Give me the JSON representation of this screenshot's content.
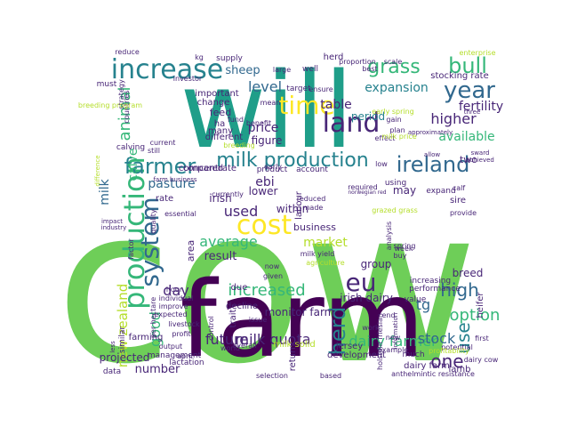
{
  "palette": {
    "background": "#ffffff",
    "dark_purple": "#440154",
    "purple": "#482677",
    "blue": "#31688e",
    "teal": "#26828e",
    "green_teal": "#1f9e89",
    "green": "#35b779",
    "light_green": "#6ece58",
    "yellow_green": "#b5de2b",
    "yellow": "#fde725"
  },
  "words": [
    {
      "text": "cow",
      "color": "light_green"
    },
    {
      "text": "will",
      "color": "green_teal"
    },
    {
      "text": "farm",
      "color": "dark_purple"
    },
    {
      "text": "increase",
      "color": "teal"
    },
    {
      "text": "production",
      "color": "green"
    },
    {
      "text": "system",
      "color": "blue"
    },
    {
      "text": "farmer",
      "color": "teal"
    },
    {
      "text": "ireland",
      "color": "blue"
    },
    {
      "text": "time",
      "color": "yellow"
    },
    {
      "text": "cost",
      "color": "yellow"
    },
    {
      "text": "land",
      "color": "purple"
    },
    {
      "text": "year",
      "color": "blue"
    },
    {
      "text": "bull",
      "color": "green"
    },
    {
      "text": "milk production",
      "color": "teal"
    },
    {
      "text": "eu",
      "color": "purple"
    },
    {
      "text": "herd",
      "color": "teal"
    },
    {
      "text": "high",
      "color": "blue"
    },
    {
      "text": "increased",
      "color": "green"
    },
    {
      "text": "future",
      "color": "purple"
    },
    {
      "text": "milk quota",
      "color": "purple"
    },
    {
      "text": "dairy farmer",
      "color": "green"
    },
    {
      "text": "one",
      "color": "purple"
    },
    {
      "text": "use",
      "color": "teal"
    },
    {
      "text": "option",
      "color": "green"
    },
    {
      "text": "stock",
      "color": "blue"
    },
    {
      "text": "tg",
      "color": "blue"
    },
    {
      "text": "grass",
      "color": "green"
    },
    {
      "text": "animal",
      "color": "green"
    },
    {
      "text": "average",
      "color": "green"
    },
    {
      "text": "used",
      "color": "purple"
    },
    {
      "text": "day",
      "color": "purple"
    },
    {
      "text": "good",
      "color": "green"
    },
    {
      "text": "new zealand",
      "color": "yellow_green"
    },
    {
      "text": "pasture",
      "color": "blue"
    },
    {
      "text": "level",
      "color": "blue"
    },
    {
      "text": "price",
      "color": "purple"
    },
    {
      "text": "sheep",
      "color": "blue"
    },
    {
      "text": "expansion",
      "color": "teal"
    },
    {
      "text": "higher",
      "color": "purple"
    },
    {
      "text": "fertility",
      "color": "purple"
    },
    {
      "text": "available",
      "color": "green"
    },
    {
      "text": "table",
      "color": "purple"
    },
    {
      "text": "period",
      "color": "teal"
    },
    {
      "text": "ebi",
      "color": "purple"
    },
    {
      "text": "lower",
      "color": "purple"
    },
    {
      "text": "market",
      "color": "yellow_green"
    },
    {
      "text": "result",
      "color": "purple"
    },
    {
      "text": "monitor farm",
      "color": "purple"
    },
    {
      "text": "number",
      "color": "purple"
    },
    {
      "text": "group",
      "color": "purple"
    },
    {
      "text": "breed",
      "color": "purple"
    },
    {
      "text": "irish dairy",
      "color": "purple"
    },
    {
      "text": "irish",
      "color": "purple"
    },
    {
      "text": "within",
      "color": "purple"
    },
    {
      "text": "business",
      "color": "purple"
    },
    {
      "text": "may",
      "color": "purple"
    },
    {
      "text": "calve",
      "color": "green"
    },
    {
      "text": "feed",
      "color": "purple"
    },
    {
      "text": "figure",
      "color": "purple"
    },
    {
      "text": "two",
      "color": "purple"
    },
    {
      "text": "milk",
      "color": "blue"
    },
    {
      "text": "stocking rate",
      "color": "purple"
    },
    {
      "text": "projected",
      "color": "purple"
    },
    {
      "text": "sire",
      "color": "purple"
    },
    {
      "text": "herd",
      "color": "purple"
    },
    {
      "text": "change",
      "color": "purple"
    },
    {
      "text": "ha",
      "color": "purple"
    },
    {
      "text": "many",
      "color": "purple"
    },
    {
      "text": "different",
      "color": "purple"
    },
    {
      "text": "important",
      "color": "purple"
    },
    {
      "text": "product",
      "color": "purple"
    },
    {
      "text": "account",
      "color": "purple"
    },
    {
      "text": "rate",
      "color": "purple"
    },
    {
      "text": "compared",
      "color": "purple"
    },
    {
      "text": "concentrate",
      "color": "purple"
    },
    {
      "text": "labour",
      "color": "purple"
    },
    {
      "text": "area",
      "color": "purple"
    },
    {
      "text": "milk solid",
      "color": "yellow_green"
    },
    {
      "text": "return",
      "color": "purple"
    },
    {
      "text": "jersey",
      "color": "purple"
    },
    {
      "text": "development",
      "color": "purple"
    },
    {
      "text": "decline",
      "color": "purple"
    },
    {
      "text": "due",
      "color": "purple"
    },
    {
      "text": "trait",
      "color": "purple"
    },
    {
      "text": "much",
      "color": "purple"
    },
    {
      "text": "dairy farm",
      "color": "purple"
    },
    {
      "text": "lamb",
      "color": "purple"
    },
    {
      "text": "heifer",
      "color": "purple"
    },
    {
      "text": "increasing",
      "color": "purple"
    },
    {
      "text": "performance",
      "color": "purple"
    },
    {
      "text": "value",
      "color": "purple"
    },
    {
      "text": "farming",
      "color": "purple"
    },
    {
      "text": "similar",
      "color": "purple"
    },
    {
      "text": "management",
      "color": "purple"
    },
    {
      "text": "lactation",
      "color": "purple"
    },
    {
      "text": "data",
      "color": "purple"
    },
    {
      "text": "must",
      "color": "purple"
    },
    {
      "text": "supply",
      "color": "purple"
    },
    {
      "text": "well",
      "color": "purple"
    },
    {
      "text": "target",
      "color": "purple"
    },
    {
      "text": "fund",
      "color": "purple"
    },
    {
      "text": "benefit",
      "color": "purple"
    },
    {
      "text": "calving",
      "color": "purple"
    },
    {
      "text": "breeding",
      "color": "yellow_green"
    },
    {
      "text": "currently",
      "color": "purple"
    },
    {
      "text": "expand",
      "color": "purple"
    },
    {
      "text": "low",
      "color": "purple"
    },
    {
      "text": "using",
      "color": "purple"
    },
    {
      "text": "plan",
      "color": "purple"
    },
    {
      "text": "large",
      "color": "purple"
    },
    {
      "text": "kg",
      "color": "purple"
    },
    {
      "text": "reduce",
      "color": "purple"
    },
    {
      "text": "enterprise",
      "color": "yellow_green"
    },
    {
      "text": "proportion",
      "color": "purple"
    },
    {
      "text": "scale",
      "color": "purple"
    },
    {
      "text": "investor",
      "color": "purple"
    },
    {
      "text": "ensure",
      "color": "purple"
    },
    {
      "text": "best",
      "color": "purple"
    },
    {
      "text": "strategy",
      "color": "purple"
    },
    {
      "text": "countries",
      "color": "purple"
    },
    {
      "text": "breeding program",
      "color": "yellow_green"
    },
    {
      "text": "early spring",
      "color": "yellow_green"
    },
    {
      "text": "gain",
      "color": "purple"
    },
    {
      "text": "three",
      "color": "purple"
    },
    {
      "text": "effect",
      "color": "purple"
    },
    {
      "text": "milk price",
      "color": "yellow_green"
    },
    {
      "text": "current",
      "color": "purple"
    },
    {
      "text": "still",
      "color": "purple"
    },
    {
      "text": "mean",
      "color": "purple"
    },
    {
      "text": "difference",
      "color": "yellow_green"
    },
    {
      "text": "early",
      "color": "purple"
    },
    {
      "text": "farm business",
      "color": "purple"
    },
    {
      "text": "reduced",
      "color": "purple"
    },
    {
      "text": "made",
      "color": "purple"
    },
    {
      "text": "required",
      "color": "purple"
    },
    {
      "text": "norwegian red",
      "color": "purple"
    },
    {
      "text": "calf",
      "color": "purple"
    },
    {
      "text": "provide",
      "color": "purple"
    },
    {
      "text": "impact",
      "color": "purple"
    },
    {
      "text": "industry",
      "color": "purple"
    },
    {
      "text": "quality",
      "color": "purple"
    },
    {
      "text": "essential",
      "color": "purple"
    },
    {
      "text": "grazed grass",
      "color": "yellow_green"
    },
    {
      "text": "analysis",
      "color": "purple"
    },
    {
      "text": "spring",
      "color": "purple"
    },
    {
      "text": "milk yield",
      "color": "purple"
    },
    {
      "text": "agriculture",
      "color": "yellow_green"
    },
    {
      "text": "week",
      "color": "purple"
    },
    {
      "text": "buy",
      "color": "purple"
    },
    {
      "text": "now",
      "color": "purple"
    },
    {
      "text": "given",
      "color": "purple"
    },
    {
      "text": "hour",
      "color": "purple"
    },
    {
      "text": "individual",
      "color": "purple"
    },
    {
      "text": "improve",
      "color": "purple"
    },
    {
      "text": "expected",
      "color": "purple"
    },
    {
      "text": "livestock",
      "color": "purple"
    },
    {
      "text": "less",
      "color": "purple"
    },
    {
      "text": "profit",
      "color": "purple"
    },
    {
      "text": "output",
      "color": "purple"
    },
    {
      "text": "april",
      "color": "purple"
    },
    {
      "text": "issue",
      "color": "purple"
    },
    {
      "text": "overall",
      "color": "purple"
    },
    {
      "text": "world",
      "color": "purple"
    },
    {
      "text": "selection",
      "color": "purple"
    },
    {
      "text": "based",
      "color": "purple"
    },
    {
      "text": "anthelmintic resistance",
      "color": "purple"
    },
    {
      "text": "holstein friesian",
      "color": "purple"
    },
    {
      "text": "information",
      "color": "purple"
    },
    {
      "text": "potential",
      "color": "purple"
    },
    {
      "text": "profitability",
      "color": "yellow_green"
    },
    {
      "text": "first",
      "color": "purple"
    },
    {
      "text": "dairy cow",
      "color": "purple"
    },
    {
      "text": "work",
      "color": "purple"
    },
    {
      "text": "new",
      "color": "purple"
    },
    {
      "text": "end",
      "color": "purple"
    },
    {
      "text": "example",
      "color": "purple"
    },
    {
      "text": "sward",
      "color": "purple"
    },
    {
      "text": "achieved",
      "color": "purple"
    },
    {
      "text": "approximately",
      "color": "purple"
    },
    {
      "text": "allow",
      "color": "purple"
    },
    {
      "text": "factor",
      "color": "purple"
    },
    {
      "text": "control",
      "color": "purple"
    },
    {
      "text": "per hectare",
      "color": "purple"
    },
    {
      "text": "set",
      "color": "purple"
    },
    {
      "text": "replacement",
      "color": "purple"
    }
  ]
}
